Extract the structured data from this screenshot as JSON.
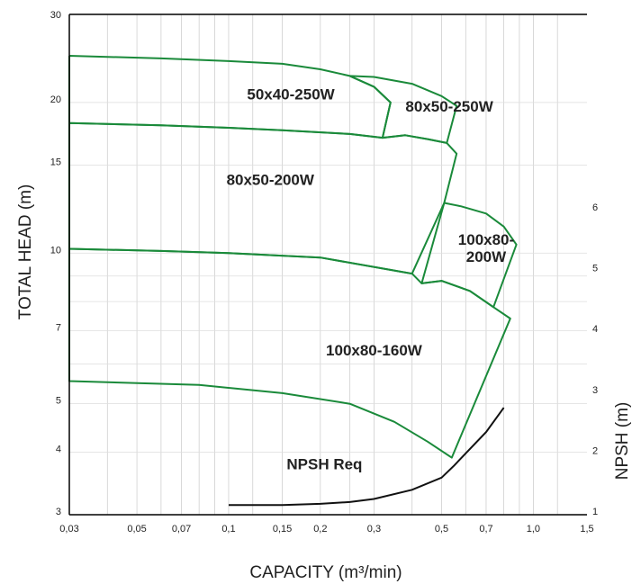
{
  "chart_data": {
    "type": "line",
    "xlabel": "CAPACITY (m³/min)",
    "ylabel": "TOTAL HEAD (m)",
    "y2label": "NPSH (m)",
    "xscale": "log",
    "yscale": "log",
    "xlim": [
      0.03,
      1.5
    ],
    "ylim": [
      3,
      30
    ],
    "y2lim": [
      1,
      6
    ],
    "grid": true,
    "x_ticks": [
      {
        "v": 0.03,
        "label": "0,03"
      },
      {
        "v": 0.05,
        "label": "0,05"
      },
      {
        "v": 0.07,
        "label": "0,07"
      },
      {
        "v": 0.1,
        "label": "0,1"
      },
      {
        "v": 0.15,
        "label": "0,15"
      },
      {
        "v": 0.2,
        "label": "0,2"
      },
      {
        "v": 0.3,
        "label": "0,3"
      },
      {
        "v": 0.5,
        "label": "0,5"
      },
      {
        "v": 0.7,
        "label": "0,7"
      },
      {
        "v": 1.0,
        "label": "1,0"
      },
      {
        "v": 1.5,
        "label": "1,5"
      }
    ],
    "x_grid": [
      0.04,
      0.06,
      0.08,
      0.09,
      0.12,
      0.25,
      0.4,
      0.6,
      0.8,
      0.9,
      1.2
    ],
    "y_ticks": [
      {
        "v": 3,
        "label": "3"
      },
      {
        "v": 4,
        "label": "4"
      },
      {
        "v": 5,
        "label": "5"
      },
      {
        "v": 7,
        "label": "7"
      },
      {
        "v": 10,
        "label": "10"
      },
      {
        "v": 15,
        "label": "15"
      },
      {
        "v": 20,
        "label": "20"
      },
      {
        "v": 30,
        "label": "30"
      }
    ],
    "y_grid": [
      6,
      8,
      9
    ],
    "y2_ticks": [
      {
        "v": 1,
        "label": "1"
      },
      {
        "v": 2,
        "label": "2"
      },
      {
        "v": 3,
        "label": "3"
      },
      {
        "v": 4,
        "label": "4"
      },
      {
        "v": 5,
        "label": "5"
      },
      {
        "v": 6,
        "label": "6"
      }
    ],
    "series_color": "#1a8a3a",
    "npsh_color": "#111111",
    "regions": [
      {
        "name": "50x40-250W",
        "label_at": [
          0.16,
          20.3
        ],
        "outline": [
          [
            0.03,
            24.8
          ],
          [
            0.06,
            24.5
          ],
          [
            0.1,
            24.2
          ],
          [
            0.15,
            23.9
          ],
          [
            0.2,
            23.3
          ],
          [
            0.25,
            22.6
          ],
          [
            0.3,
            21.5
          ],
          [
            0.34,
            20.0
          ],
          [
            0.32,
            17.0
          ],
          [
            0.25,
            17.3
          ],
          [
            0.15,
            17.6
          ],
          [
            0.1,
            17.8
          ],
          [
            0.06,
            18.0
          ],
          [
            0.03,
            18.2
          ],
          [
            0.03,
            24.8
          ]
        ]
      },
      {
        "name": "80x50-250W",
        "label_at": [
          0.53,
          19.2
        ],
        "outline": [
          [
            0.25,
            22.6
          ],
          [
            0.3,
            22.5
          ],
          [
            0.4,
            21.8
          ],
          [
            0.5,
            20.6
          ],
          [
            0.56,
            19.7
          ],
          [
            0.52,
            16.6
          ],
          [
            0.45,
            16.9
          ],
          [
            0.38,
            17.2
          ],
          [
            0.32,
            17.0
          ],
          [
            0.34,
            20.0
          ],
          [
            0.3,
            21.5
          ],
          [
            0.25,
            22.6
          ]
        ]
      },
      {
        "name": "80x50-200W",
        "label_at": [
          0.137,
          13.7
        ],
        "outline": [
          [
            0.03,
            18.2
          ],
          [
            0.06,
            18.0
          ],
          [
            0.1,
            17.8
          ],
          [
            0.15,
            17.6
          ],
          [
            0.25,
            17.3
          ],
          [
            0.32,
            17.0
          ],
          [
            0.38,
            17.2
          ],
          [
            0.45,
            16.9
          ],
          [
            0.52,
            16.6
          ],
          [
            0.56,
            15.8
          ],
          [
            0.51,
            12.6
          ],
          [
            0.4,
            9.1
          ],
          [
            0.2,
            9.8
          ],
          [
            0.1,
            10.0
          ],
          [
            0.06,
            10.1
          ],
          [
            0.03,
            10.2
          ],
          [
            0.03,
            18.2
          ]
        ]
      },
      {
        "name_lines": [
          "100x80-",
          "200W"
        ],
        "label_at": [
          0.7,
          10.4
        ],
        "outline": [
          [
            0.51,
            12.6
          ],
          [
            0.58,
            12.4
          ],
          [
            0.7,
            12.0
          ],
          [
            0.8,
            11.3
          ],
          [
            0.88,
            10.4
          ],
          [
            0.74,
            7.8
          ],
          [
            0.62,
            8.4
          ],
          [
            0.5,
            8.8
          ],
          [
            0.43,
            8.7
          ],
          [
            0.51,
            12.6
          ]
        ]
      },
      {
        "name": "100x80-160W",
        "label_at": [
          0.3,
          6.25
        ],
        "outline": [
          [
            0.03,
            10.2
          ],
          [
            0.06,
            10.1
          ],
          [
            0.1,
            10.0
          ],
          [
            0.2,
            9.8
          ],
          [
            0.4,
            9.1
          ],
          [
            0.43,
            8.7
          ],
          [
            0.5,
            8.8
          ],
          [
            0.62,
            8.4
          ],
          [
            0.74,
            7.8
          ],
          [
            0.84,
            7.4
          ],
          [
            0.54,
            3.9
          ],
          [
            0.45,
            4.2
          ],
          [
            0.35,
            4.6
          ],
          [
            0.25,
            5.0
          ],
          [
            0.15,
            5.25
          ],
          [
            0.08,
            5.45
          ],
          [
            0.03,
            5.55
          ],
          [
            0.03,
            10.2
          ]
        ]
      }
    ],
    "npsh_req": {
      "name": "NPSH Req",
      "label_at": [
        0.155,
        3.7
      ],
      "points": [
        [
          0.1,
          1.1
        ],
        [
          0.15,
          1.1
        ],
        [
          0.2,
          1.12
        ],
        [
          0.25,
          1.15
        ],
        [
          0.3,
          1.2
        ],
        [
          0.4,
          1.35
        ],
        [
          0.5,
          1.55
        ],
        [
          0.55,
          1.75
        ],
        [
          0.6,
          1.95
        ],
        [
          0.7,
          2.3
        ],
        [
          0.8,
          2.7
        ]
      ]
    }
  }
}
